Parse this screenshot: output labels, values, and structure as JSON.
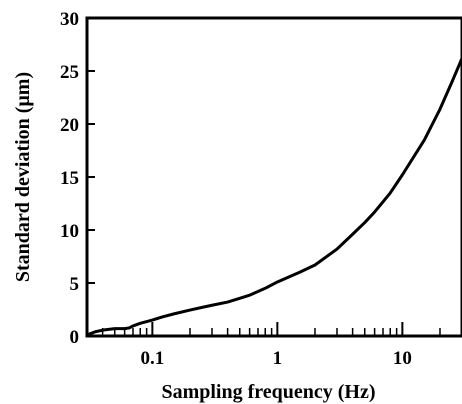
{
  "chart_data": {
    "type": "line",
    "title": "",
    "xlabel": "Sampling frequency (Hz)",
    "ylabel": "Standard deviation (μm)",
    "xscale": "log",
    "xlim": [
      0.03,
      30
    ],
    "ylim": [
      0,
      30
    ],
    "grid": false,
    "legend": "none",
    "x_ticks": [
      {
        "value": 0.1,
        "label": "0.1"
      },
      {
        "value": 1,
        "label": "1"
      },
      {
        "value": 10,
        "label": "10"
      }
    ],
    "y_ticks": [
      {
        "value": 0,
        "label": "0"
      },
      {
        "value": 5,
        "label": "5"
      },
      {
        "value": 10,
        "label": "10"
      },
      {
        "value": 15,
        "label": "15"
      },
      {
        "value": 20,
        "label": "20"
      },
      {
        "value": 25,
        "label": "25"
      },
      {
        "value": 30,
        "label": "30"
      }
    ],
    "series": [
      {
        "color": "#000000",
        "x": [
          0.03,
          0.035,
          0.04,
          0.05,
          0.06,
          0.065,
          0.07,
          0.08,
          0.1,
          0.12,
          0.15,
          0.2,
          0.25,
          0.3,
          0.4,
          0.5,
          0.6,
          0.8,
          1.0,
          1.5,
          2.0,
          3.0,
          4.0,
          5.0,
          6.0,
          8.0,
          10.0,
          15.0,
          20.0,
          25.0,
          30.0
        ],
        "y": [
          0.1,
          0.4,
          0.55,
          0.7,
          0.7,
          0.75,
          0.95,
          1.2,
          1.5,
          1.8,
          2.1,
          2.45,
          2.7,
          2.9,
          3.2,
          3.55,
          3.85,
          4.5,
          5.1,
          6.0,
          6.7,
          8.2,
          9.6,
          10.7,
          11.7,
          13.5,
          15.2,
          18.5,
          21.4,
          24.0,
          26.2
        ]
      }
    ]
  }
}
